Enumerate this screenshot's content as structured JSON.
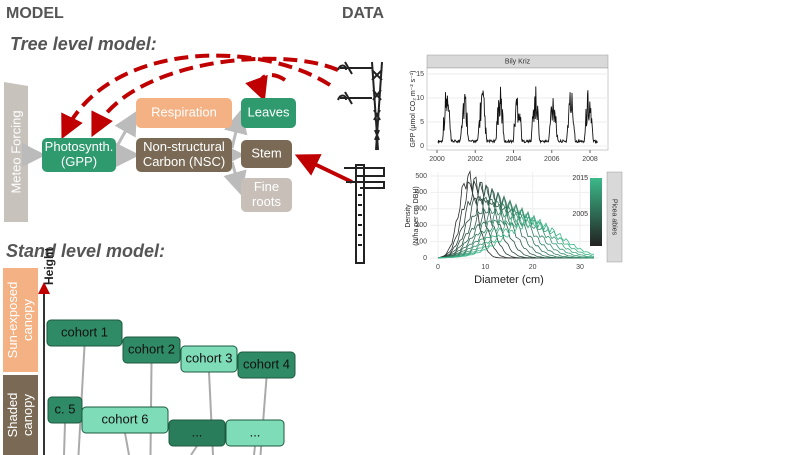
{
  "header": {
    "model": "MODEL",
    "data": "DATA"
  },
  "tree_level": {
    "title": "Tree level model:",
    "forcing": "Meteo Forcing",
    "nodes": [
      {
        "lines": [
          "Photosynth.",
          "(GPP)"
        ]
      },
      {
        "lines": [
          "Respiration"
        ]
      },
      {
        "lines": [
          "Non-structural",
          "Carbon (NSC)"
        ]
      },
      {
        "lines": [
          "Leaves"
        ]
      },
      {
        "lines": [
          "Stem"
        ]
      },
      {
        "lines": [
          "Fine",
          "roots"
        ]
      }
    ]
  },
  "stand_level": {
    "title": "Stand level model:",
    "height_label": "Height",
    "layers": [
      {
        "lines": [
          "Sun-exposed",
          "canopy"
        ]
      },
      {
        "lines": [
          "Shaded",
          "canopy"
        ]
      }
    ],
    "cohorts": [
      "cohort 1",
      "cohort 2",
      "cohort 3",
      "cohort 4",
      "c. 5",
      "cohort 6",
      "...",
      "..."
    ]
  },
  "gpp_panel": {
    "strip": "Bily Kriz",
    "ylabel": "GPP (μmol CO₂ m⁻² s⁻¹)",
    "yticks": [
      0,
      5,
      10,
      15
    ],
    "xticks": [
      2000,
      2002,
      2004,
      2006,
      2008
    ]
  },
  "density_panel": {
    "ylabel": [
      "Density",
      "(N/ha per cm DBH)"
    ],
    "xlabel": "Diameter (cm)",
    "yticks": [
      0,
      100,
      200,
      300,
      400,
      500
    ],
    "xticks": [
      0,
      10,
      20,
      30
    ],
    "legend_ticks": [
      2015,
      2005
    ],
    "strip": "Picea abies"
  }
}
